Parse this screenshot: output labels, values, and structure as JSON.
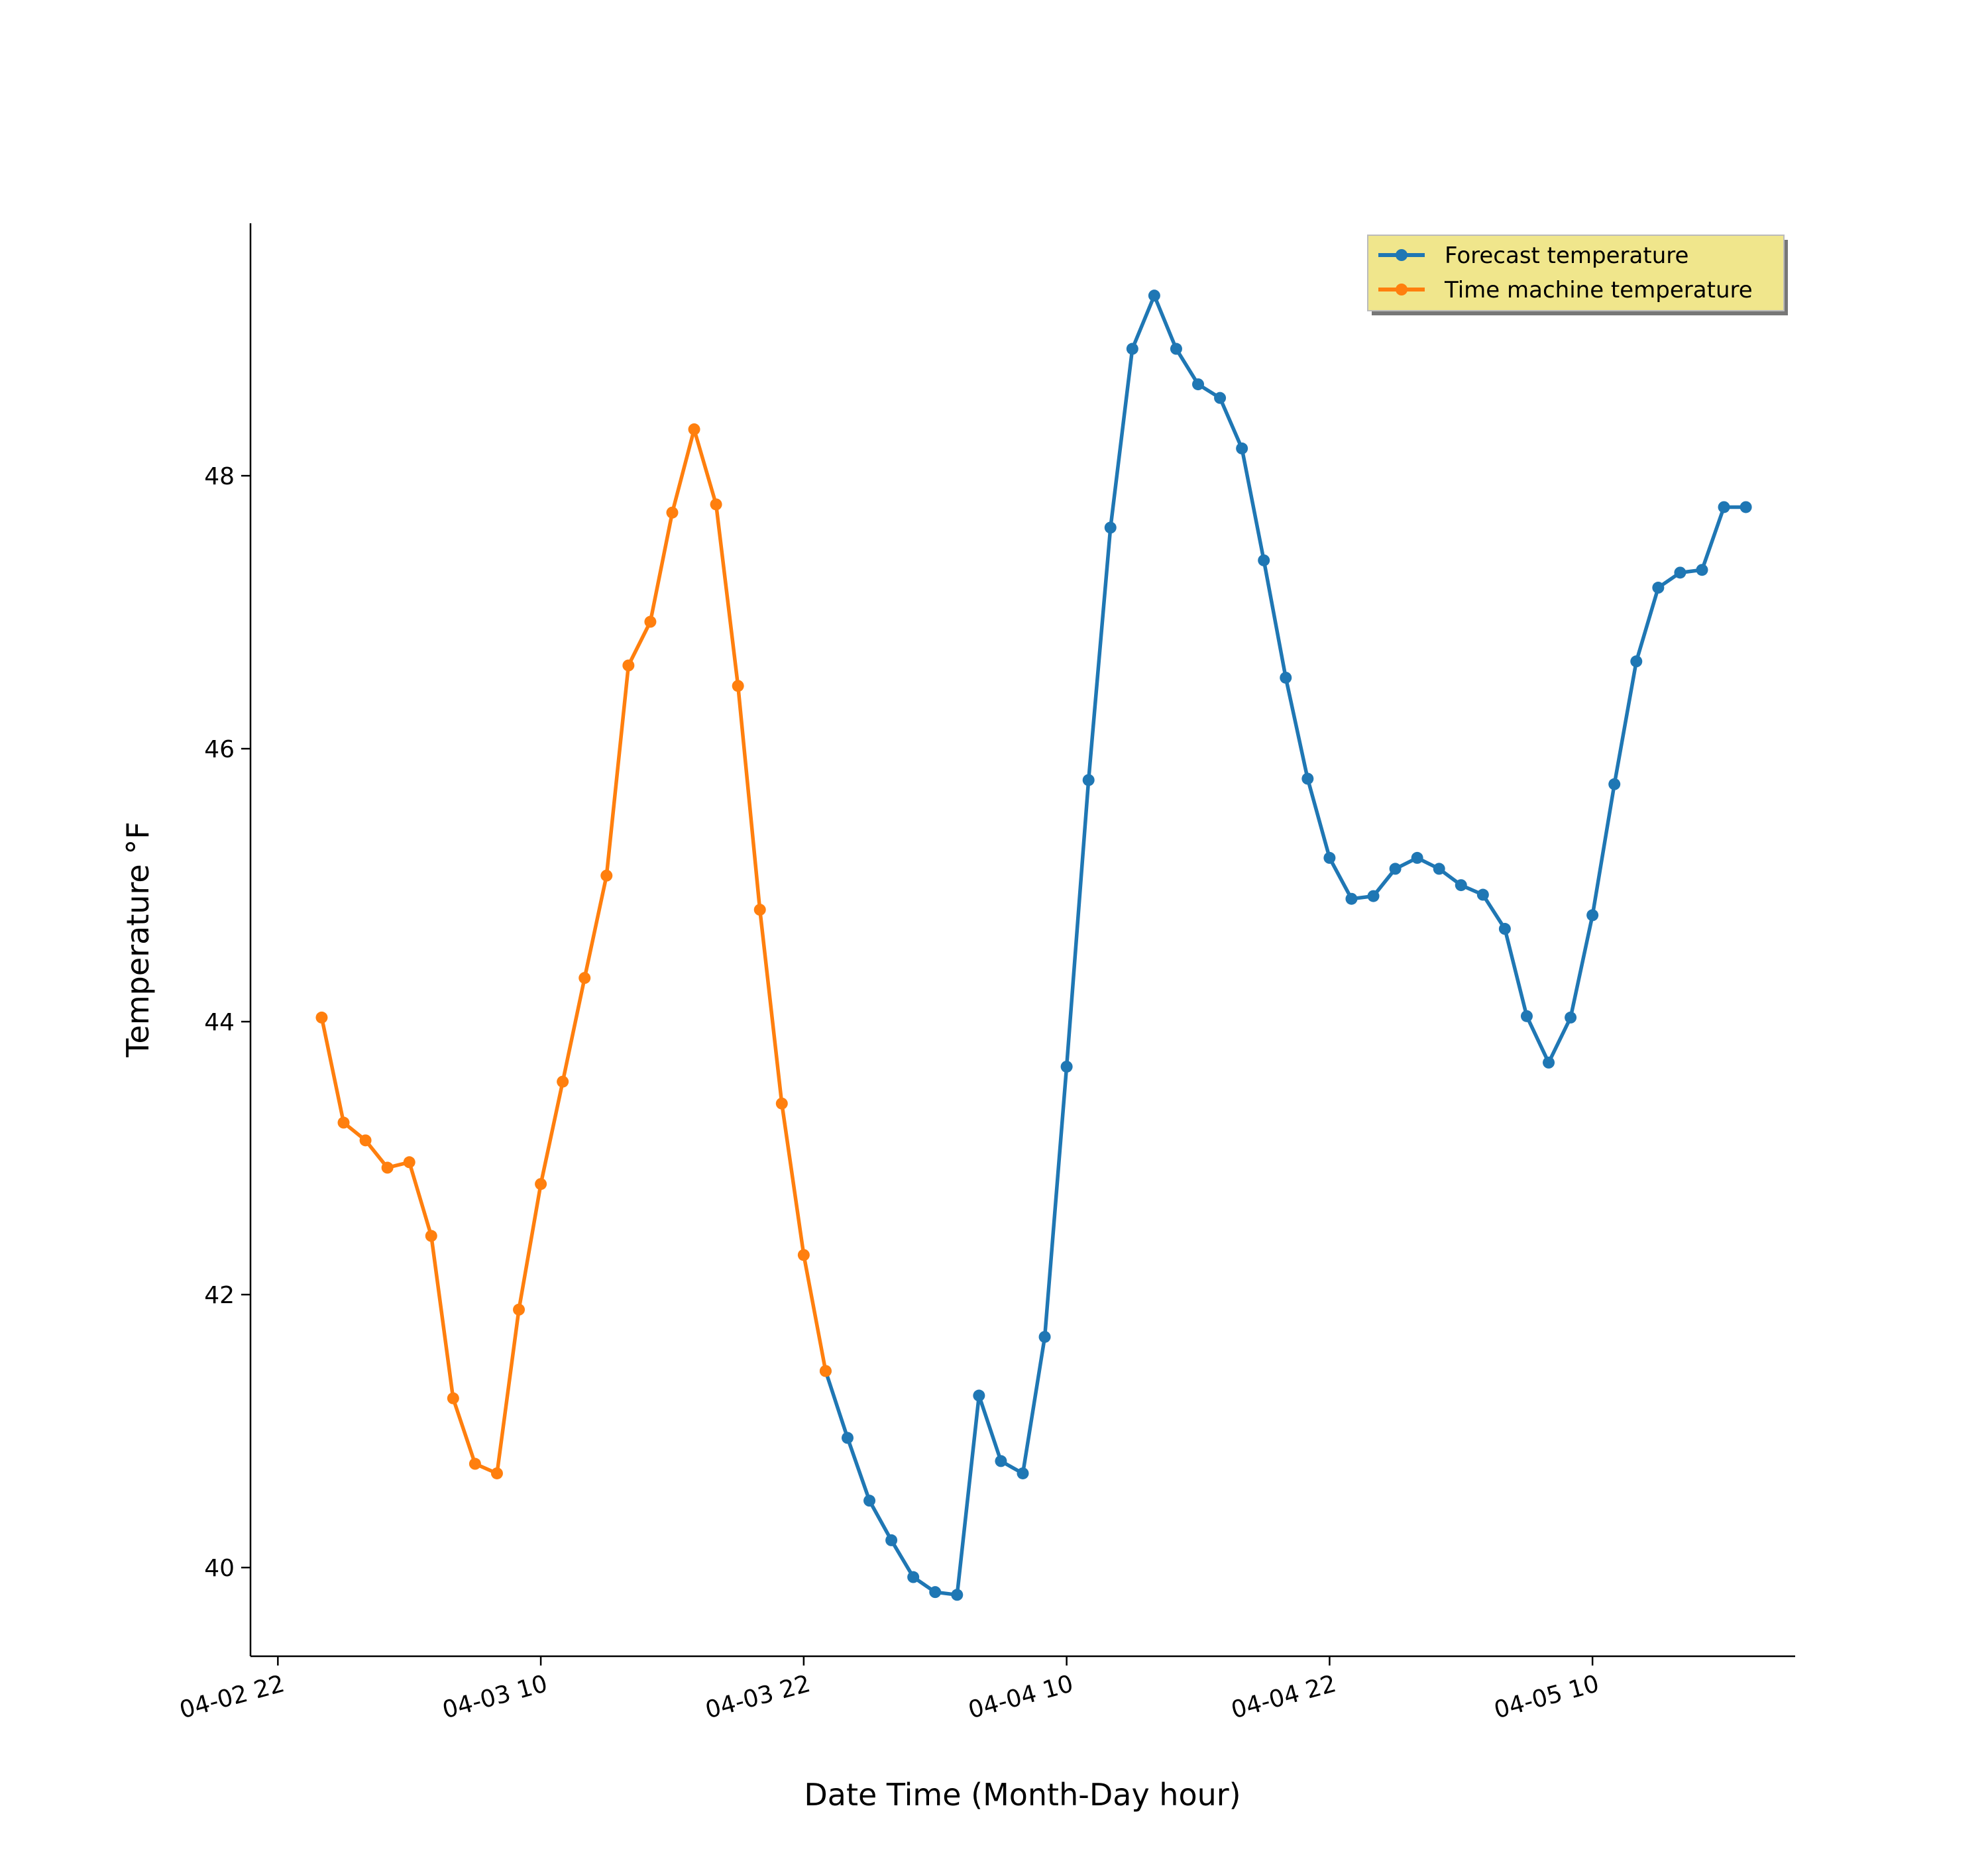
{
  "chart_data": {
    "type": "line",
    "title": "",
    "xlabel": "Date Time (Month-Day hour)",
    "ylabel": "Temperature °F",
    "x_unit": "hours from 04-02 22:00",
    "xlim": [
      -1.25,
      69.25
    ],
    "ylim": [
      39.35,
      49.85
    ],
    "x_ticks": [
      {
        "value": 0,
        "label": "04-02 22"
      },
      {
        "value": 12,
        "label": "04-03 10"
      },
      {
        "value": 24,
        "label": "04-03 22"
      },
      {
        "value": 36,
        "label": "04-04 10"
      },
      {
        "value": 48,
        "label": "04-04 22"
      },
      {
        "value": 60,
        "label": "04-05 10"
      }
    ],
    "y_ticks": [
      {
        "value": 40,
        "label": "40"
      },
      {
        "value": 42,
        "label": "42"
      },
      {
        "value": 44,
        "label": "44"
      },
      {
        "value": 46,
        "label": "46"
      },
      {
        "value": 48,
        "label": "48"
      }
    ],
    "grid": false,
    "legend": {
      "location": "top-right",
      "background": "#F0E68C",
      "entries": [
        "Forecast temperature",
        "Time machine temperature"
      ]
    },
    "series": [
      {
        "name": "Forecast temperature",
        "color": "#1f77b4",
        "x": [
          25,
          26,
          27,
          28,
          29,
          30,
          31,
          32,
          33,
          34,
          35,
          36,
          37,
          38,
          39,
          40,
          41,
          42,
          43,
          44,
          45,
          46,
          47,
          48,
          49,
          50,
          51,
          52,
          53,
          54,
          55,
          56,
          57,
          58,
          59,
          60,
          61,
          62,
          63,
          64,
          65,
          66,
          67
        ],
        "values": [
          41.44,
          40.95,
          40.49,
          40.2,
          39.93,
          39.82,
          39.8,
          41.26,
          40.78,
          40.69,
          41.69,
          43.67,
          45.77,
          47.62,
          48.93,
          49.32,
          48.93,
          48.67,
          48.57,
          48.2,
          47.38,
          46.52,
          45.78,
          45.2,
          44.9,
          44.92,
          45.12,
          45.2,
          45.12,
          45.0,
          44.93,
          44.68,
          44.04,
          43.7,
          44.03,
          44.78,
          45.74,
          46.64,
          47.18,
          47.29,
          47.31,
          47.77,
          47.77
        ]
      },
      {
        "name": "Time machine temperature",
        "color": "#ff7f0e",
        "x": [
          2,
          3,
          4,
          5,
          6,
          7,
          8,
          9,
          10,
          11,
          12,
          13,
          14,
          15,
          16,
          17,
          18,
          19,
          20,
          21,
          22,
          23,
          24,
          25
        ],
        "values": [
          44.03,
          43.26,
          43.13,
          42.93,
          42.97,
          42.43,
          41.24,
          40.76,
          40.69,
          41.89,
          42.81,
          43.56,
          44.32,
          45.07,
          46.61,
          46.93,
          47.73,
          48.34,
          47.79,
          46.46,
          44.82,
          43.4,
          42.29,
          41.44
        ]
      }
    ]
  }
}
